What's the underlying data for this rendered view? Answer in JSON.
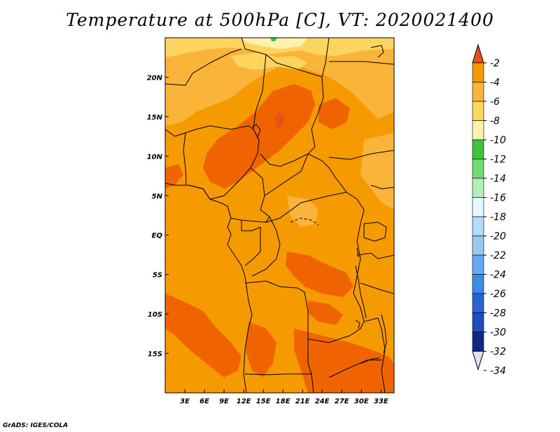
{
  "title": "Temperature at 500hPa [C], VT: 2020021400",
  "credit": "GrADS: IGES/COLA",
  "map": {
    "lon_range": [
      0,
      35
    ],
    "lat_range": [
      -20,
      25
    ],
    "x_ticks": [
      {
        "value": 3,
        "label": "3E"
      },
      {
        "value": 6,
        "label": "6E"
      },
      {
        "value": 9,
        "label": "9E"
      },
      {
        "value": 12,
        "label": "12E"
      },
      {
        "value": 15,
        "label": "15E"
      },
      {
        "value": 18,
        "label": "18E"
      },
      {
        "value": 21,
        "label": "21E"
      },
      {
        "value": 24,
        "label": "24E"
      },
      {
        "value": 27,
        "label": "27E"
      },
      {
        "value": 30,
        "label": "30E"
      },
      {
        "value": 33,
        "label": "33E"
      }
    ],
    "y_ticks": [
      {
        "value": 20,
        "label": "20N"
      },
      {
        "value": 15,
        "label": "15N"
      },
      {
        "value": 10,
        "label": "10N"
      },
      {
        "value": 5,
        "label": "5N"
      },
      {
        "value": 0,
        "label": "EQ"
      },
      {
        "value": -5,
        "label": "5S"
      },
      {
        "value": -10,
        "label": "10S"
      },
      {
        "value": -15,
        "label": "15S"
      }
    ]
  },
  "colorbar": {
    "labels": [
      "-2",
      "-4",
      "-6",
      "-8",
      "-10",
      "-12",
      "-14",
      "-16",
      "-18",
      "-20",
      "-22",
      "-24",
      "-26",
      "-28",
      "-30",
      "-32",
      "-34"
    ],
    "top_arrow_color": "#e8501a",
    "bottom_arrow_color": "#e0e0f4",
    "colors": [
      "#f06400",
      "#f59a00",
      "#fbb43a",
      "#fcd45f",
      "#fff2ad",
      "#3cc43c",
      "#70dc70",
      "#b4f0b4",
      "#e4f8ff",
      "#b4dcf8",
      "#96c8f0",
      "#64aaf0",
      "#3c8ce6",
      "#2864d2",
      "#1e4ebe",
      "#102880",
      "#0a0a64"
    ]
  },
  "field_colors": {
    "dark_orange": "#f06400",
    "orange": "#f59a00",
    "light_orange": "#fbb43a",
    "pale_yellow": "#fcd45f",
    "very_pale": "#fff2ad",
    "green": "#3cc43c",
    "border": "#000000"
  }
}
